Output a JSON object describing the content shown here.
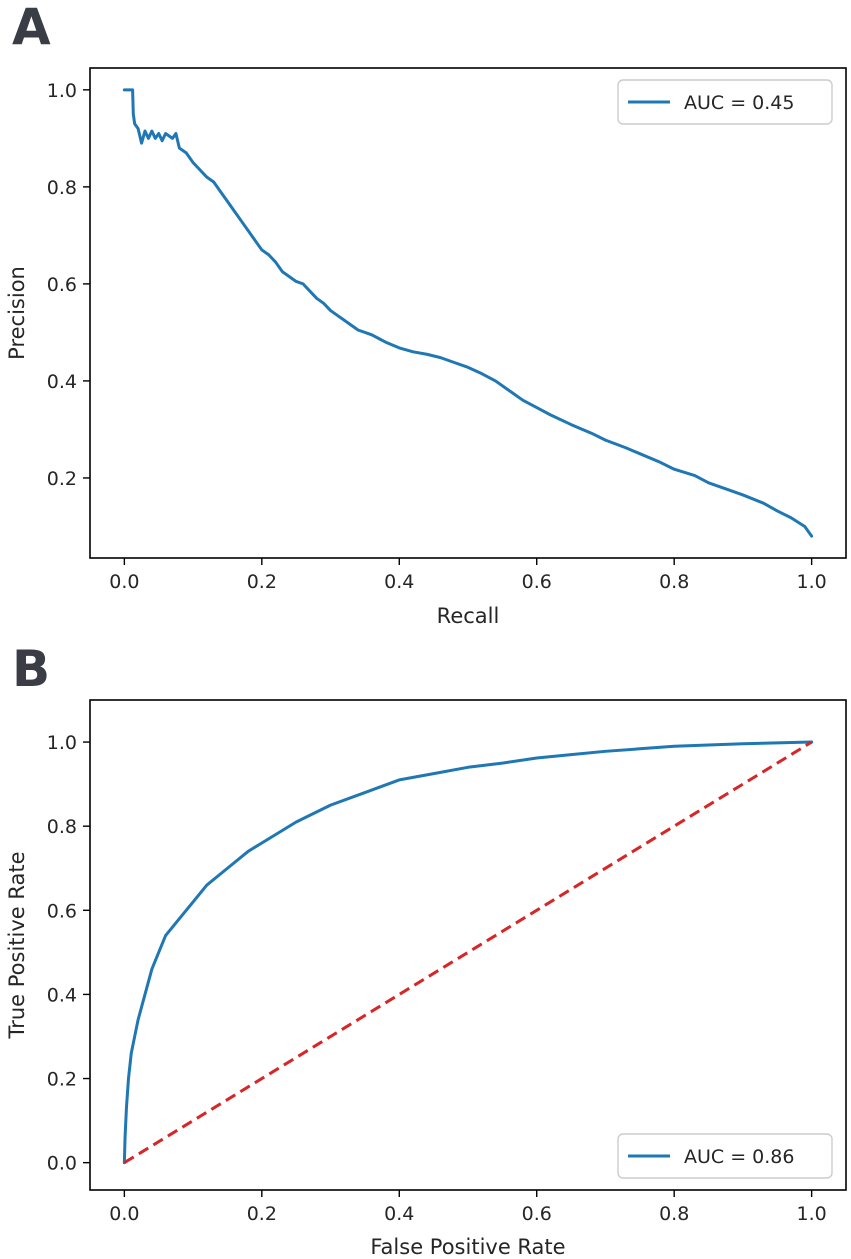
{
  "chart_data": [
    {
      "panel": "A",
      "type": "line",
      "title": "",
      "xlabel": "Recall",
      "ylabel": "Precision",
      "xlim": [
        -0.05,
        1.05
      ],
      "ylim": [
        0.035,
        1.045
      ],
      "xticks": [
        "0.0",
        "0.2",
        "0.4",
        "0.6",
        "0.8",
        "1.0"
      ],
      "yticks": [
        "0.2",
        "0.4",
        "0.6",
        "0.8",
        "1.0"
      ],
      "legend_position": "top-right",
      "series": [
        {
          "name": "AUC = 0.45",
          "color": "#1f77b4",
          "style": "solid",
          "x": [
            0.0,
            0.012,
            0.013,
            0.015,
            0.02,
            0.025,
            0.03,
            0.035,
            0.04,
            0.045,
            0.05,
            0.055,
            0.06,
            0.07,
            0.075,
            0.08,
            0.09,
            0.1,
            0.11,
            0.12,
            0.13,
            0.14,
            0.15,
            0.16,
            0.17,
            0.18,
            0.19,
            0.2,
            0.21,
            0.22,
            0.23,
            0.24,
            0.25,
            0.26,
            0.27,
            0.28,
            0.29,
            0.3,
            0.31,
            0.32,
            0.33,
            0.34,
            0.36,
            0.38,
            0.4,
            0.42,
            0.44,
            0.46,
            0.48,
            0.5,
            0.52,
            0.54,
            0.56,
            0.58,
            0.6,
            0.62,
            0.65,
            0.68,
            0.7,
            0.73,
            0.75,
            0.78,
            0.8,
            0.83,
            0.85,
            0.88,
            0.9,
            0.93,
            0.95,
            0.97,
            0.99,
            1.0
          ],
          "y": [
            1.0,
            1.0,
            0.95,
            0.93,
            0.92,
            0.89,
            0.915,
            0.9,
            0.915,
            0.9,
            0.91,
            0.895,
            0.91,
            0.9,
            0.91,
            0.88,
            0.87,
            0.85,
            0.835,
            0.82,
            0.81,
            0.79,
            0.77,
            0.75,
            0.73,
            0.71,
            0.69,
            0.67,
            0.66,
            0.645,
            0.625,
            0.615,
            0.605,
            0.6,
            0.585,
            0.57,
            0.56,
            0.545,
            0.535,
            0.525,
            0.515,
            0.505,
            0.495,
            0.48,
            0.468,
            0.46,
            0.455,
            0.448,
            0.438,
            0.428,
            0.415,
            0.4,
            0.38,
            0.36,
            0.345,
            0.33,
            0.31,
            0.292,
            0.278,
            0.262,
            0.25,
            0.232,
            0.218,
            0.205,
            0.19,
            0.175,
            0.165,
            0.148,
            0.132,
            0.118,
            0.1,
            0.08
          ]
        }
      ]
    },
    {
      "panel": "B",
      "type": "line",
      "title": "",
      "xlabel": "False Positive Rate",
      "ylabel": "True Positive Rate",
      "xlim": [
        -0.05,
        1.05
      ],
      "ylim": [
        -0.065,
        1.1
      ],
      "xticks": [
        "0.0",
        "0.2",
        "0.4",
        "0.6",
        "0.8",
        "1.0"
      ],
      "yticks": [
        "0.0",
        "0.2",
        "0.4",
        "0.6",
        "0.8",
        "1.0"
      ],
      "legend_position": "bottom-right",
      "series": [
        {
          "name": "AUC = 0.86",
          "color": "#1f77b4",
          "style": "solid",
          "x": [
            0.0,
            0.001,
            0.003,
            0.006,
            0.01,
            0.015,
            0.02,
            0.03,
            0.04,
            0.05,
            0.06,
            0.08,
            0.1,
            0.12,
            0.15,
            0.18,
            0.2,
            0.25,
            0.3,
            0.35,
            0.4,
            0.45,
            0.5,
            0.55,
            0.6,
            0.65,
            0.7,
            0.75,
            0.8,
            0.85,
            0.9,
            0.95,
            1.0
          ],
          "y": [
            0.0,
            0.06,
            0.13,
            0.2,
            0.26,
            0.3,
            0.34,
            0.4,
            0.46,
            0.5,
            0.54,
            0.58,
            0.62,
            0.66,
            0.7,
            0.74,
            0.76,
            0.81,
            0.85,
            0.88,
            0.91,
            0.925,
            0.94,
            0.95,
            0.962,
            0.97,
            0.978,
            0.984,
            0.99,
            0.993,
            0.996,
            0.998,
            1.0
          ]
        },
        {
          "name": "",
          "color": "#d62728",
          "style": "dashed",
          "x": [
            0.0,
            1.0
          ],
          "y": [
            0.0,
            1.0
          ]
        }
      ]
    }
  ],
  "panel_letters": [
    "A",
    "B"
  ],
  "legends": [
    "AUC = 0.45",
    "AUC = 0.86"
  ]
}
